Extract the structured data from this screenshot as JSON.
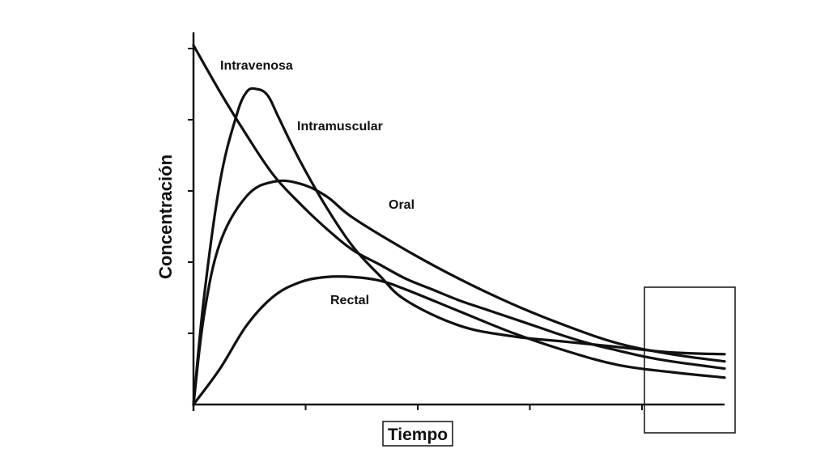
{
  "chart_data": {
    "type": "line",
    "xlabel": "Tiempo",
    "ylabel": "Concentración",
    "xlim": [
      0,
      1
    ],
    "ylim": [
      0,
      1
    ],
    "x_ticks": 5,
    "y_ticks": 5,
    "x_tick_labels": [],
    "y_tick_labels": [],
    "grid": false,
    "series": [
      {
        "name": "Intravenosa",
        "x": [
          0,
          0.05,
          0.1,
          0.15,
          0.2,
          0.25,
          0.3,
          0.35,
          0.4,
          0.45,
          0.5,
          0.55,
          0.6,
          0.65,
          0.7,
          0.75,
          0.8,
          0.85,
          0.9,
          0.95,
          1.0
        ],
        "y": [
          1.0,
          0.87,
          0.75,
          0.64,
          0.56,
          0.49,
          0.43,
          0.39,
          0.35,
          0.32,
          0.29,
          0.265,
          0.24,
          0.215,
          0.19,
          0.168,
          0.15,
          0.133,
          0.12,
          0.11,
          0.1
        ]
      },
      {
        "name": "Intramuscular",
        "x": [
          0,
          0.02,
          0.05,
          0.08,
          0.1,
          0.12,
          0.14,
          0.16,
          0.2,
          0.25,
          0.3,
          0.35,
          0.4,
          0.5,
          0.6,
          0.7,
          0.8,
          0.9,
          1.0
        ],
        "y": [
          0,
          0.3,
          0.62,
          0.8,
          0.87,
          0.878,
          0.86,
          0.8,
          0.68,
          0.55,
          0.44,
          0.36,
          0.29,
          0.22,
          0.19,
          0.175,
          0.16,
          0.145,
          0.14
        ]
      },
      {
        "name": "Oral",
        "x": [
          0,
          0.02,
          0.05,
          0.1,
          0.15,
          0.2,
          0.25,
          0.3,
          0.4,
          0.5,
          0.6,
          0.7,
          0.8,
          0.9,
          1.0
        ],
        "y": [
          0,
          0.25,
          0.45,
          0.58,
          0.62,
          0.615,
          0.58,
          0.52,
          0.43,
          0.35,
          0.28,
          0.22,
          0.17,
          0.14,
          0.12
        ]
      },
      {
        "name": "Rectal",
        "x": [
          0,
          0.05,
          0.1,
          0.15,
          0.2,
          0.25,
          0.3,
          0.35,
          0.4,
          0.5,
          0.6,
          0.7,
          0.8,
          0.9,
          1.0
        ],
        "y": [
          0,
          0.1,
          0.22,
          0.3,
          0.34,
          0.355,
          0.355,
          0.345,
          0.32,
          0.26,
          0.2,
          0.15,
          0.11,
          0.09,
          0.075
        ]
      }
    ]
  }
}
